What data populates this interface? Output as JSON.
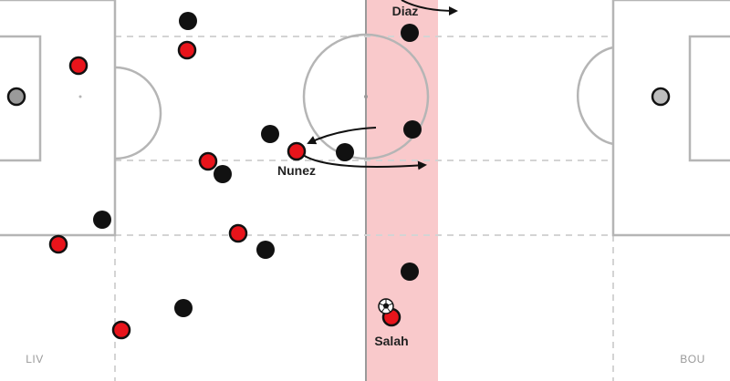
{
  "teams": {
    "left": {
      "label": "LIV"
    },
    "right": {
      "label": "BOU"
    }
  },
  "players": {
    "diaz": {
      "label": "Diaz"
    },
    "nunez": {
      "label": "Nunez"
    },
    "salah": {
      "label": "Salah"
    }
  },
  "colors": {
    "pitch_line": "#b5b5b5",
    "dashed_line": "#d2d2d2",
    "highlight_band": "#f9c9cb",
    "band_edge": "#9a9a9a",
    "liverpool_fill": "#e8141b",
    "bournemouth_fill": "#111111",
    "goalkeeper_fill": "#9a9a9a",
    "arrow": "#111111"
  },
  "icons": {
    "ball": "soccer-ball-icon"
  }
}
